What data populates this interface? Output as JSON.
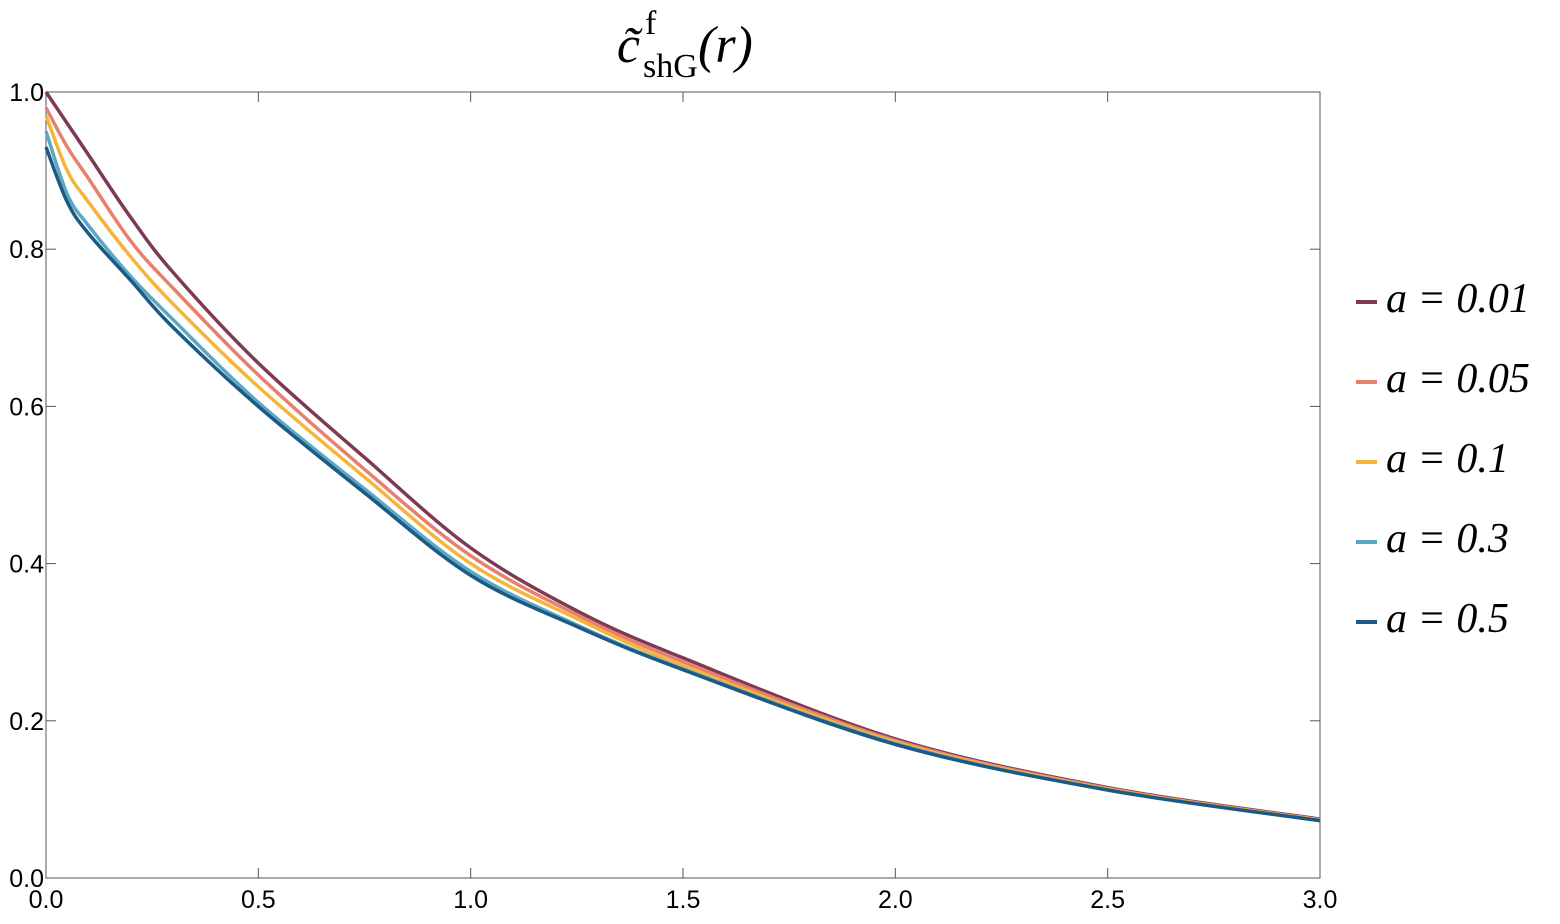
{
  "chart_data": {
    "type": "line",
    "title": {
      "base": "c̃",
      "superscript": "f",
      "subscript": "shG",
      "argument": "(r)"
    },
    "x": [
      0,
      0.05,
      0.1,
      0.2,
      0.3,
      0.5,
      0.75,
      1.0,
      1.25,
      1.5,
      2.0,
      2.5,
      3.0
    ],
    "series": [
      {
        "name": "a = 0.01",
        "color": "#7d3a52",
        "values": [
          1.0,
          0.96,
          0.92,
          0.84,
          0.77,
          0.655,
          0.535,
          0.42,
          0.34,
          0.28,
          0.177,
          0.115,
          0.075
        ]
      },
      {
        "name": "a = 0.05",
        "color": "#e8806e",
        "values": [
          0.98,
          0.93,
          0.89,
          0.81,
          0.75,
          0.64,
          0.52,
          0.41,
          0.335,
          0.275,
          0.175,
          0.114,
          0.074
        ]
      },
      {
        "name": "a = 0.1",
        "color": "#f5b43a",
        "values": [
          0.97,
          0.9,
          0.86,
          0.79,
          0.73,
          0.625,
          0.51,
          0.4,
          0.33,
          0.27,
          0.173,
          0.113,
          0.074
        ]
      },
      {
        "name": "a = 0.3",
        "color": "#5aa8c4",
        "values": [
          0.95,
          0.87,
          0.83,
          0.765,
          0.71,
          0.605,
          0.495,
          0.39,
          0.322,
          0.266,
          0.171,
          0.112,
          0.073
        ]
      },
      {
        "name": "a = 0.5",
        "color": "#1c5a85",
        "values": [
          0.93,
          0.86,
          0.82,
          0.76,
          0.7,
          0.6,
          0.49,
          0.385,
          0.32,
          0.265,
          0.17,
          0.112,
          0.073
        ]
      }
    ],
    "xlim": [
      0,
      3.0
    ],
    "ylim": [
      0,
      1.0
    ],
    "xticks": [
      {
        "value": 0,
        "label": "0.0"
      },
      0.5,
      {
        "value": 1,
        "label": "1.0"
      },
      1.5,
      {
        "value": 2,
        "label": "2.0"
      },
      2.5,
      {
        "value": 3,
        "label": "3.0"
      }
    ],
    "yticks": [
      {
        "value": 0,
        "label": "0.0"
      },
      0.2,
      0.4,
      0.6,
      0.8,
      {
        "value": 1,
        "label": "1.0"
      }
    ],
    "legend": "right"
  }
}
